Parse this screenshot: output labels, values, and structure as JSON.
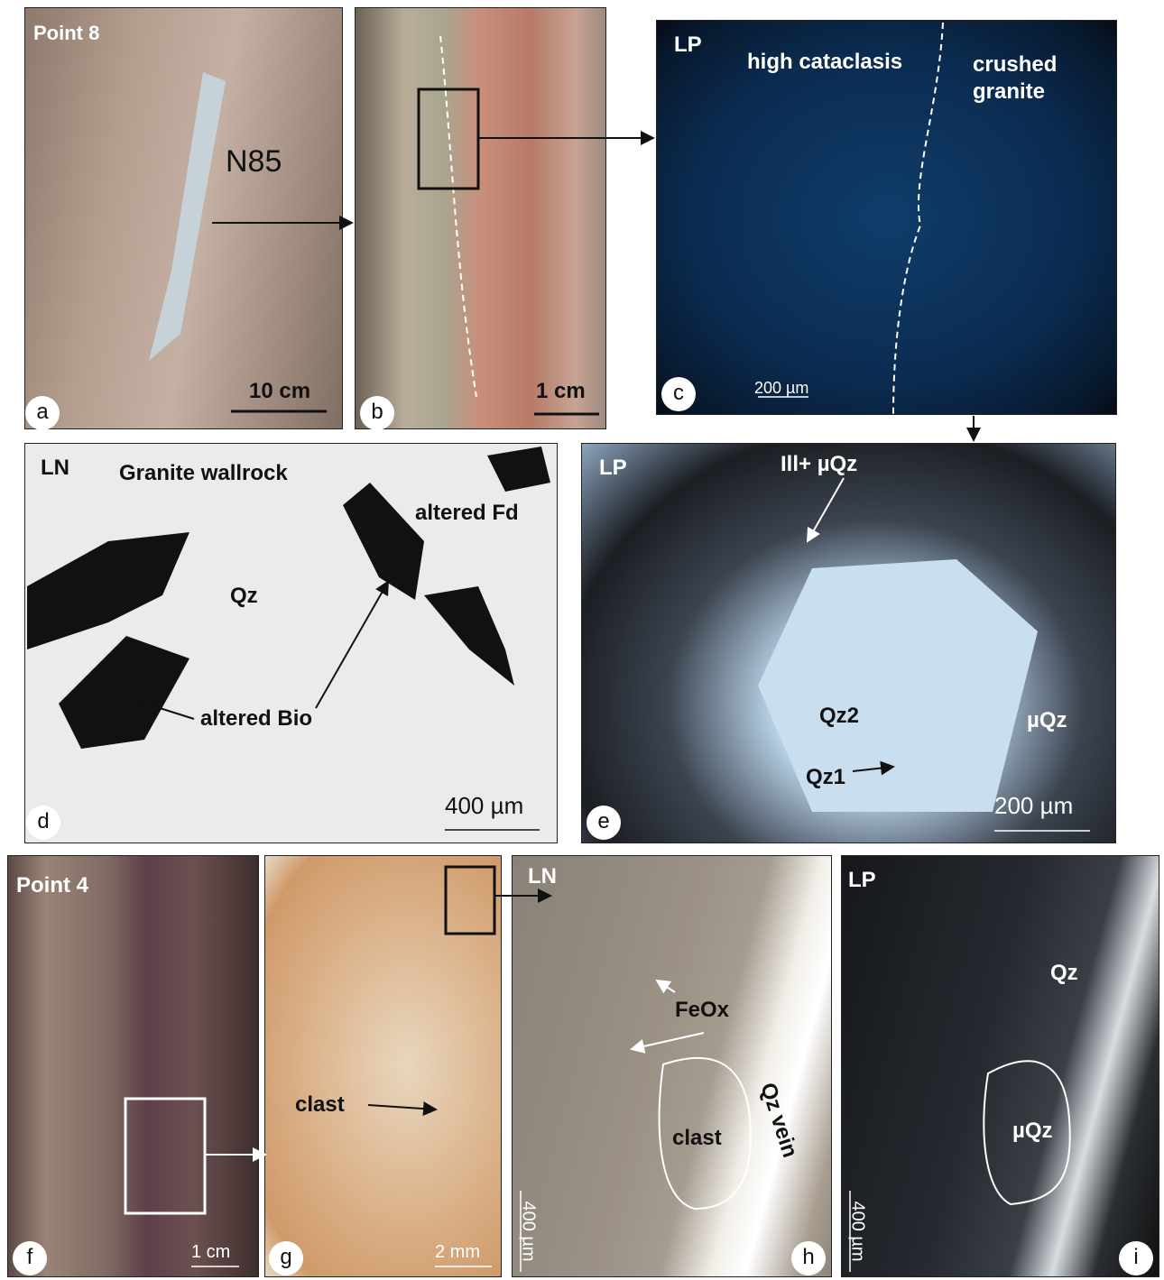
{
  "panels": [
    {
      "letter": "a",
      "texts": [
        "Point 8",
        "N85"
      ],
      "scale_bar": "10 cm"
    },
    {
      "letter": "b",
      "scale_bar": "1 cm"
    },
    {
      "letter": "c",
      "texts": [
        "LP",
        "high cataclasis",
        "crushed granite"
      ],
      "scale_bar": "200 µm"
    },
    {
      "letter": "d",
      "texts": [
        "LN",
        "Granite wallrock",
        "altered Fd",
        "Qz",
        "altered Bio"
      ],
      "scale_bar": "400 µm"
    },
    {
      "letter": "e",
      "texts": [
        "LP",
        "Ill+ µQz",
        "Qz2",
        "µQz",
        "Qz1"
      ],
      "scale_bar": "200 µm"
    },
    {
      "letter": "f",
      "texts": [
        "Point 4"
      ],
      "scale_bar": "1 cm"
    },
    {
      "letter": "g",
      "texts": [
        "clast"
      ],
      "scale_bar": "2 mm"
    },
    {
      "letter": "h",
      "texts": [
        "LN",
        "FeOx",
        "clast",
        "Qz vein"
      ],
      "scale_bar": "400 µm"
    },
    {
      "letter": "i",
      "texts": [
        "LP",
        "Qz",
        "µQz"
      ],
      "scale_bar": "400 µm"
    }
  ]
}
